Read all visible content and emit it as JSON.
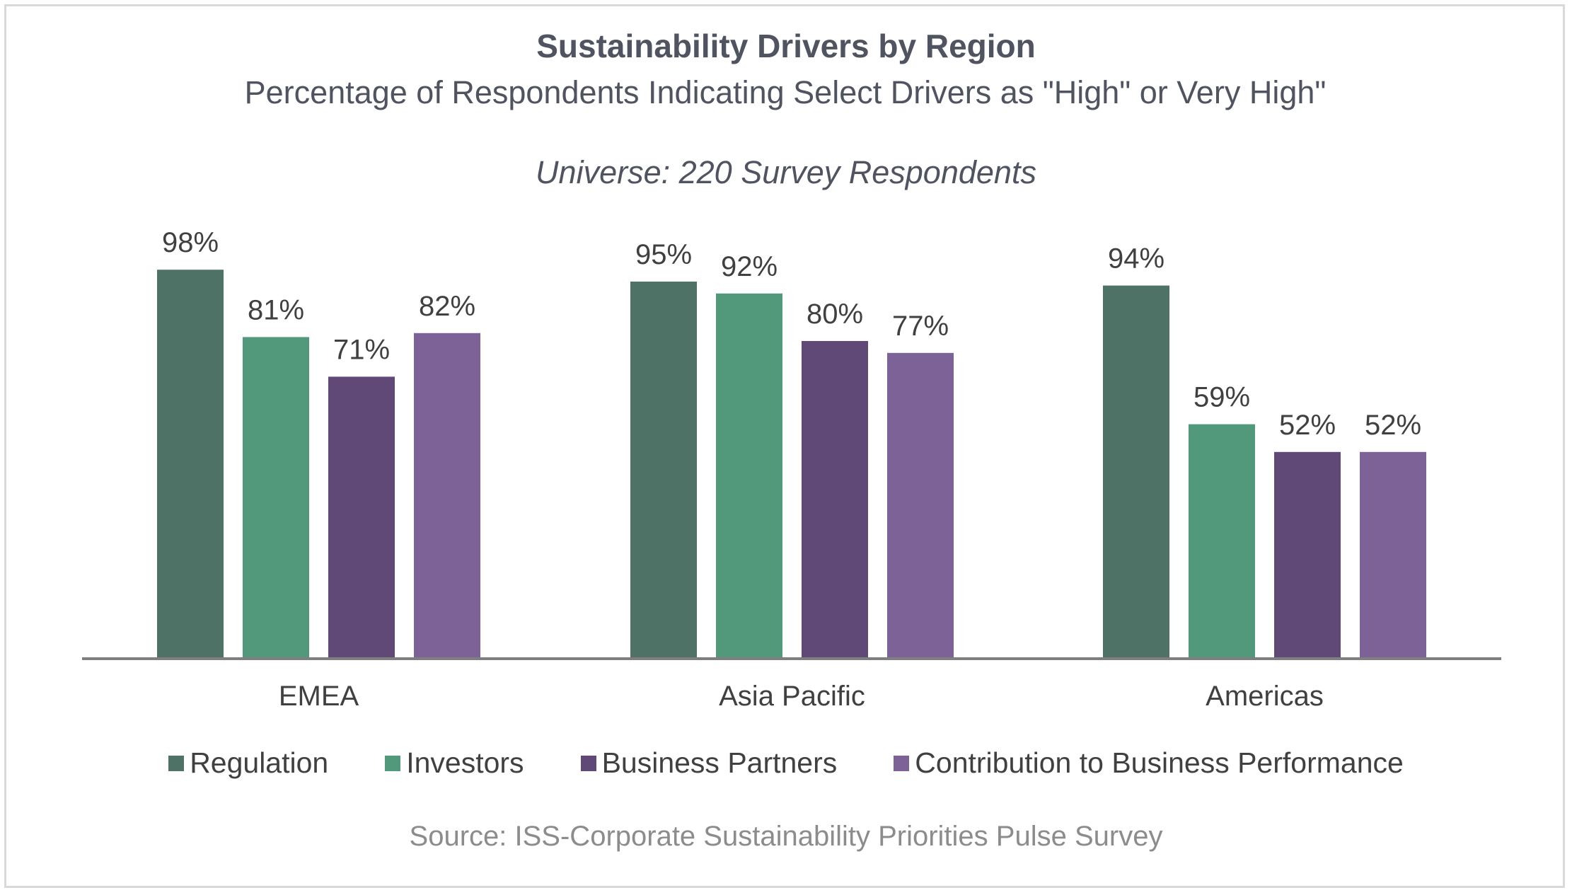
{
  "chart_data": {
    "type": "bar",
    "title": "Sustainability Drivers by Region",
    "subtitle": "Percentage of Respondents Indicating Select Drivers as \"High\" or Very High\"",
    "universe": "Universe: 220 Survey Respondents",
    "source": "Source: ISS-Corporate Sustainability Priorities Pulse Survey",
    "categories": [
      "EMEA",
      "Asia Pacific",
      "Americas"
    ],
    "series": [
      {
        "name": "Regulation",
        "color": "#4f7267",
        "values": [
          98,
          95,
          94
        ]
      },
      {
        "name": "Investors",
        "color": "#51997a",
        "values": [
          81,
          92,
          59
        ]
      },
      {
        "name": "Business Partners",
        "color": "#614977",
        "values": [
          71,
          80,
          52
        ]
      },
      {
        "name": "Contribution to Business Performance",
        "color": "#7c6296",
        "values": [
          82,
          77,
          52
        ]
      }
    ],
    "value_suffix": "%",
    "ylim": [
      0,
      100
    ],
    "xlabel": "",
    "ylabel": "",
    "grid": false,
    "legend_position": "bottom"
  }
}
